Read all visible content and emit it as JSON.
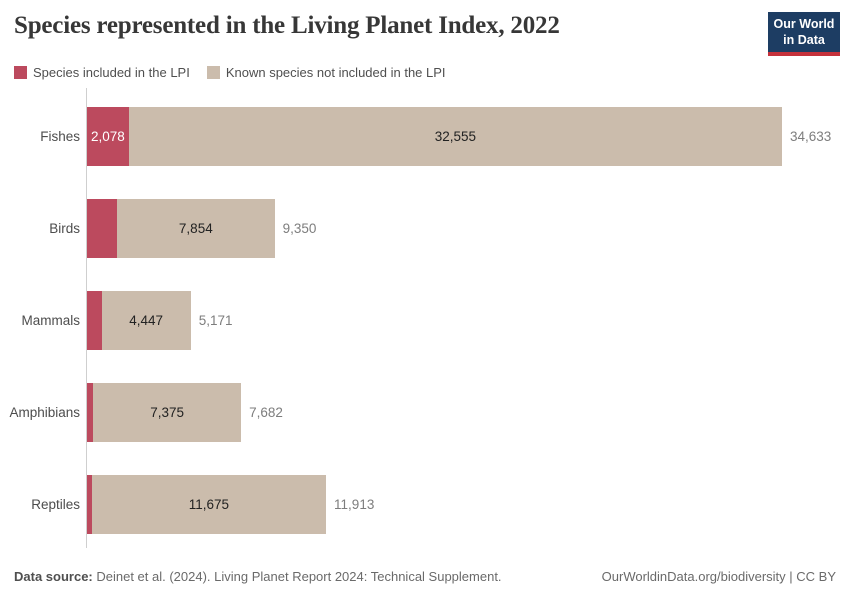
{
  "header": {
    "logo": {
      "line1": "Our World",
      "line2": "in Data",
      "bg_color": "#1d3d63",
      "accent_color": "#c5313b"
    }
  },
  "chart_data": {
    "type": "bar",
    "orientation": "horizontal",
    "stacked": true,
    "title": "Species represented in the Living Planet Index, 2022",
    "categories": [
      "Fishes",
      "Birds",
      "Mammals",
      "Amphibians",
      "Reptiles"
    ],
    "series": [
      {
        "name": "Species included in the LPI",
        "color": "#bc4a5e",
        "values": [
          2078,
          1496,
          724,
          307,
          238
        ]
      },
      {
        "name": "Known species not included in the LPI",
        "color": "#cbbcac",
        "values": [
          32555,
          7854,
          4447,
          7375,
          11675
        ]
      }
    ],
    "totals": [
      34633,
      9350,
      5171,
      7682,
      11913
    ],
    "xlim": [
      0,
      34633
    ],
    "grid": false,
    "legend_position": "top",
    "axis_color": "#cfcfcf",
    "bar_labels": {
      "included_visible": [
        "2,078",
        null,
        null,
        null,
        null
      ],
      "not_included": [
        "32,555",
        "7,854",
        "4,447",
        "7,375",
        "11,675"
      ],
      "totals": [
        "34,633",
        "9,350",
        "5,171",
        "7,682",
        "11,913"
      ]
    }
  },
  "footer": {
    "source_label": "Data source:",
    "source_text": " Deinet et al. (2024). Living Planet Report 2024: Technical Supplement.",
    "link": "OurWorldinData.org/biodiversity | CC BY"
  }
}
